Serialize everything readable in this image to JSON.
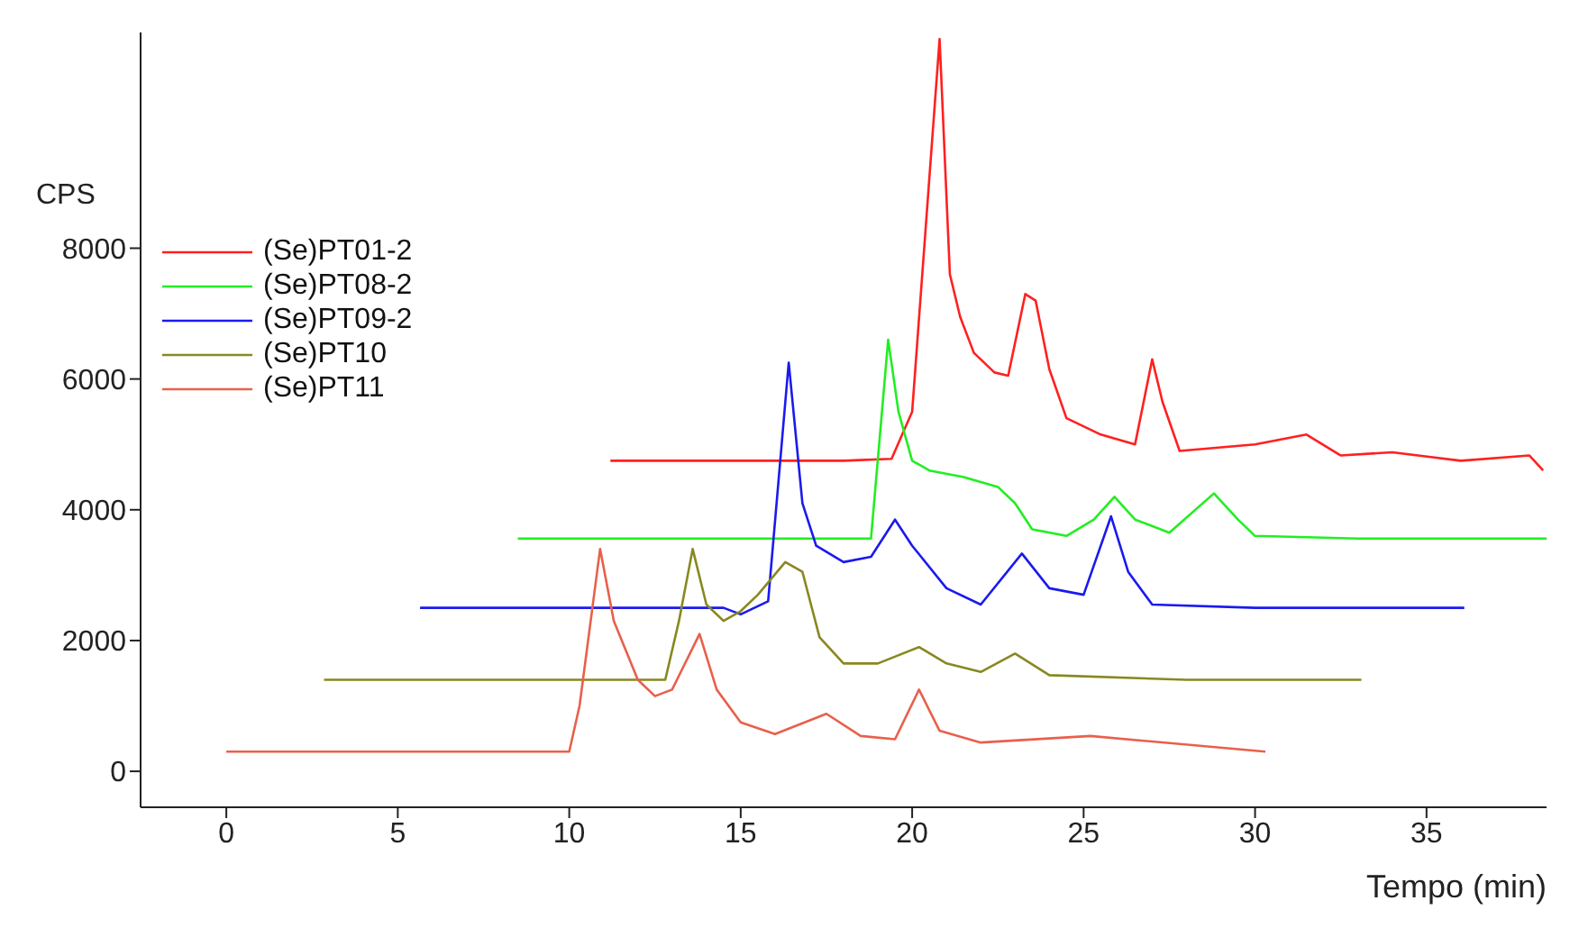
{
  "chart_data": {
    "type": "line",
    "xlabel": "Tempo (min)",
    "ylabel": "CPS",
    "xlim": [
      -2.5,
      38.5
    ],
    "xticks": [
      0,
      5,
      10,
      15,
      20,
      25,
      30,
      35
    ],
    "ylim": [
      -550,
      11300
    ],
    "yticks": [
      0,
      2000,
      4000,
      6000,
      8000
    ],
    "grid": false,
    "legend": "top left",
    "marker": "none",
    "line_style": "solid",
    "series": [
      {
        "name": "(Se)PT01-2",
        "color": "#ff2020",
        "x": [
          11.2,
          15,
          18,
          19.4,
          20.0,
          20.8,
          21.1,
          21.4,
          21.8,
          22.4,
          22.8,
          23.3,
          23.6,
          24.0,
          24.5,
          25.5,
          26.5,
          27.0,
          27.3,
          27.8,
          30,
          31.5,
          32.5,
          34,
          36,
          38,
          38.4
        ],
        "values": [
          4750,
          4750,
          4750,
          4780,
          5500,
          11200,
          7600,
          6950,
          6400,
          6100,
          6050,
          7300,
          7200,
          6150,
          5400,
          5150,
          5000,
          6300,
          5650,
          4900,
          5000,
          5150,
          4830,
          4880,
          4750,
          4830,
          4600
        ]
      },
      {
        "name": "(Se)PT08-2",
        "color": "#22ee22",
        "x": [
          8.5,
          12,
          15,
          18.8,
          19.3,
          19.6,
          20.0,
          20.5,
          21.5,
          22.5,
          23,
          23.5,
          24.5,
          25.3,
          25.9,
          26.5,
          27.5,
          28.8,
          29.5,
          30,
          33,
          38.5
        ],
        "values": [
          3560,
          3560,
          3560,
          3560,
          6600,
          5500,
          4750,
          4600,
          4500,
          4350,
          4100,
          3700,
          3600,
          3850,
          4200,
          3850,
          3650,
          4250,
          3850,
          3600,
          3560,
          3560
        ]
      },
      {
        "name": "(Se)PT09-2",
        "color": "#1a1aee",
        "x": [
          5.65,
          10,
          14.5,
          15.0,
          15.8,
          16.4,
          16.8,
          17.2,
          18,
          18.8,
          19.5,
          20,
          21,
          22,
          23.2,
          24,
          25,
          25.8,
          26.3,
          27,
          30,
          36.1
        ],
        "values": [
          2500,
          2500,
          2500,
          2400,
          2600,
          6250,
          4100,
          3450,
          3200,
          3280,
          3850,
          3450,
          2800,
          2550,
          3330,
          2800,
          2700,
          3900,
          3050,
          2550,
          2500,
          2500
        ]
      },
      {
        "name": "(Se)PT10",
        "color": "#888820",
        "x": [
          2.85,
          8,
          12.8,
          13.2,
          13.6,
          14.0,
          14.5,
          15.0,
          15.5,
          16.3,
          16.8,
          17.3,
          18,
          19,
          20.2,
          21,
          22,
          23.0,
          24,
          28,
          33.1
        ],
        "values": [
          1400,
          1400,
          1400,
          2300,
          3400,
          2550,
          2300,
          2450,
          2700,
          3200,
          3050,
          2050,
          1650,
          1650,
          1900,
          1650,
          1520,
          1800,
          1470,
          1400,
          1400
        ]
      },
      {
        "name": "(Se)PT11",
        "color": "#e8604c",
        "x": [
          0,
          5,
          10,
          10.3,
          10.9,
          11.3,
          12,
          12.5,
          13,
          13.8,
          14.3,
          15,
          16,
          17.5,
          18.5,
          19.5,
          20.2,
          20.8,
          22,
          25.2,
          30.3
        ],
        "values": [
          300,
          300,
          300,
          1000,
          3400,
          2300,
          1400,
          1150,
          1250,
          2100,
          1250,
          750,
          570,
          880,
          540,
          490,
          1250,
          620,
          440,
          540,
          300
        ]
      }
    ]
  }
}
